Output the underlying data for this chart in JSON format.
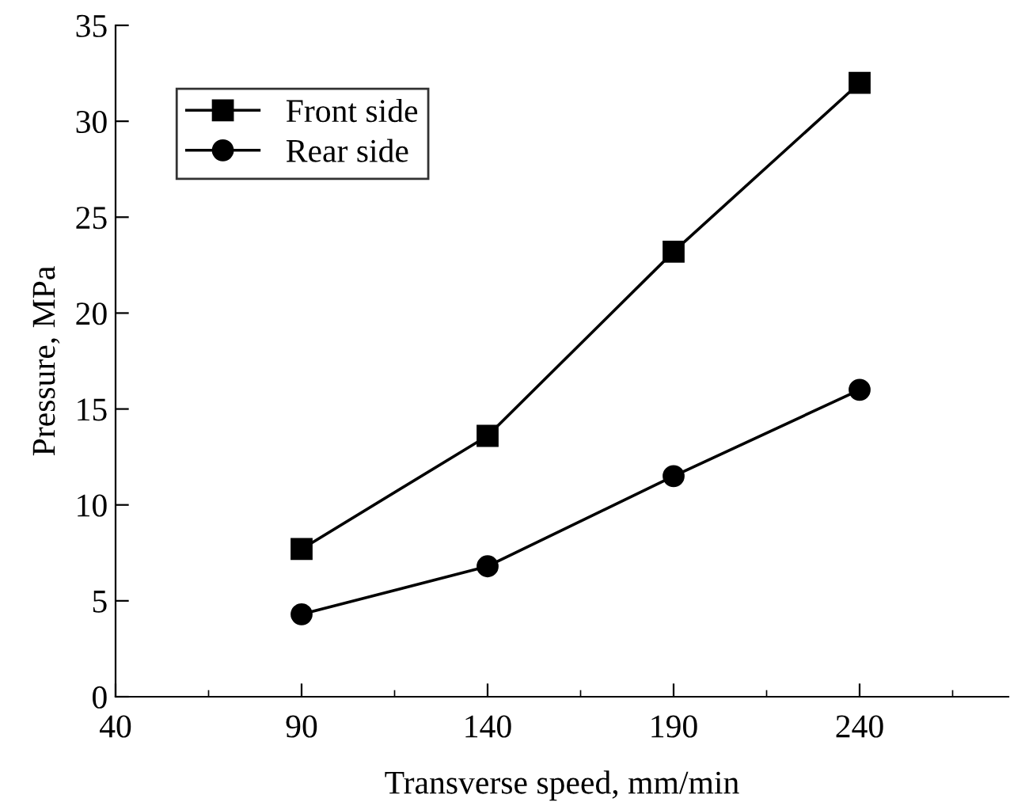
{
  "chart_data": {
    "type": "line",
    "xlabel": "Transverse speed, mm/min",
    "ylabel": "Pressure, MPa",
    "x": [
      90,
      140,
      190,
      240
    ],
    "series": [
      {
        "name": "Front side",
        "color": "#000000",
        "marker": "square",
        "values": [
          7.7,
          13.6,
          23.2,
          32.0
        ]
      },
      {
        "name": "Rear side",
        "color": "#000000",
        "marker": "circle",
        "values": [
          4.3,
          6.8,
          11.5,
          16.0
        ]
      }
    ],
    "xlim": [
      40,
      280
    ],
    "xticks": [
      40,
      90,
      140,
      190,
      240
    ],
    "ylim": [
      0,
      35
    ],
    "yticks": [
      0,
      5,
      10,
      15,
      20,
      25,
      30,
      35
    ],
    "legend": "top left",
    "grid": false,
    "line_style": "solid"
  }
}
